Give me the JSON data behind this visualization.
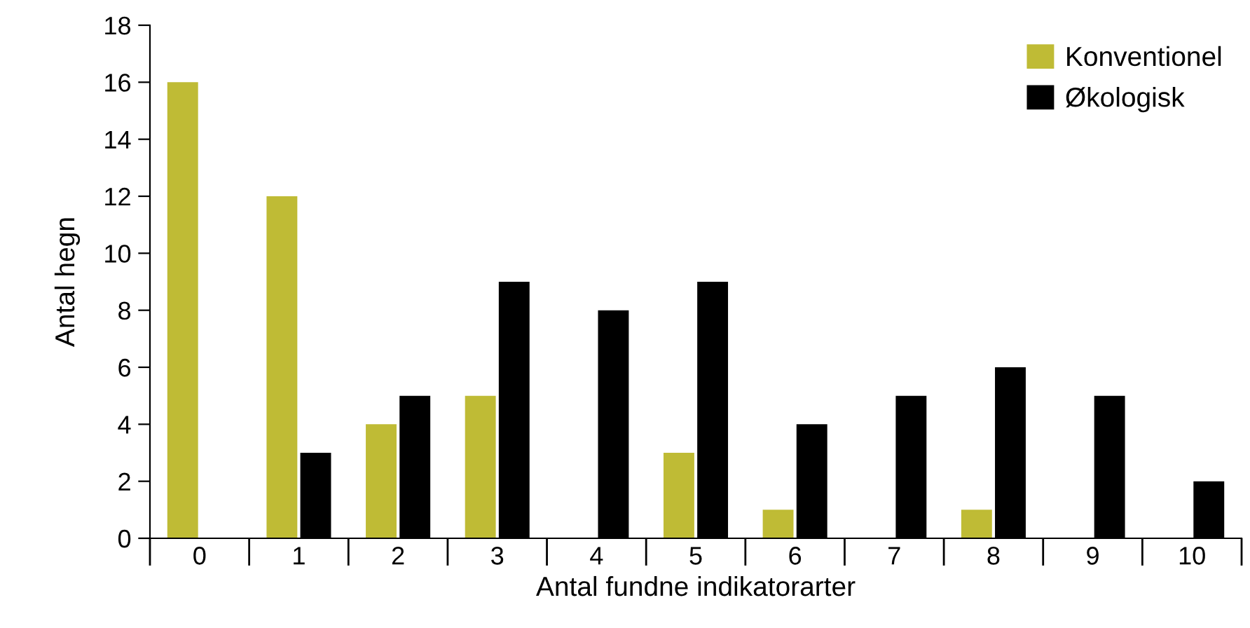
{
  "chart_data": {
    "type": "bar",
    "xlabel": "Antal fundne indikatorarter",
    "ylabel": "Antal hegn",
    "categories": [
      "0",
      "1",
      "2",
      "3",
      "4",
      "5",
      "6",
      "7",
      "8",
      "9",
      "10"
    ],
    "series": [
      {
        "name": "Konventionel",
        "color": "#bfbb35",
        "values": [
          16,
          12,
          4,
          5,
          0,
          3,
          1,
          0,
          1,
          0,
          0
        ]
      },
      {
        "name": "Økologisk",
        "color": "#000000",
        "values": [
          0,
          3,
          5,
          9,
          8,
          9,
          4,
          5,
          6,
          5,
          2
        ]
      }
    ],
    "ylim": [
      0,
      18
    ],
    "yticks": [
      0,
      2,
      4,
      6,
      8,
      10,
      12,
      14,
      16,
      18
    ],
    "grid": false,
    "legend": "top right"
  }
}
